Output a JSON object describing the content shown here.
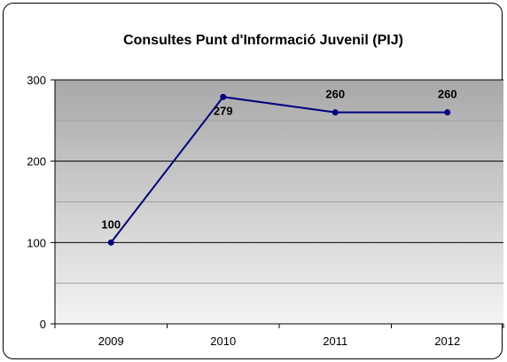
{
  "chart_data": {
    "type": "line",
    "title": "Consultes Punt d'Informació Juvenil (PIJ)",
    "xlabel": "",
    "ylabel": "",
    "categories": [
      "2009",
      "2010",
      "2011",
      "2012"
    ],
    "series": [
      {
        "values": [
          100,
          279,
          260,
          260
        ]
      }
    ],
    "data_labels": [
      "100",
      "279",
      "260",
      "260"
    ],
    "ylim": [
      0,
      300
    ],
    "yticks": [
      0,
      100,
      200,
      300
    ],
    "ytick_labels": [
      "0",
      "100",
      "200",
      "300"
    ],
    "grid": true,
    "legend": "none",
    "line_color": "#000080",
    "plot_background": "gradient-gray"
  }
}
